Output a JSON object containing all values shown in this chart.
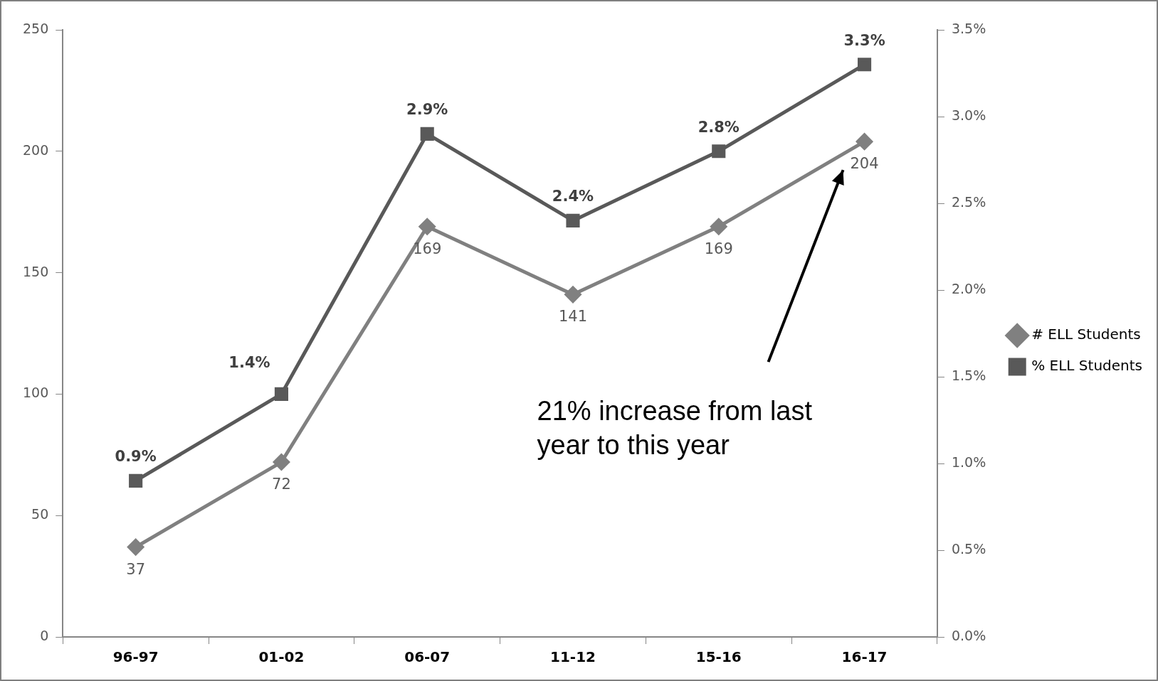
{
  "chart_data": {
    "type": "line",
    "categories": [
      "96-97",
      "01-02",
      "06-07",
      "11-12",
      "15-16",
      "16-17"
    ],
    "series": [
      {
        "name": "# ELL Students",
        "color": "#808080",
        "marker": "diamond",
        "values": [
          37,
          72,
          169,
          141,
          169,
          204
        ]
      },
      {
        "name": "% ELL Students",
        "color": "#595959",
        "marker": "square",
        "axis": "y2",
        "values": [
          0.9,
          1.4,
          2.9,
          2.4,
          2.8,
          3.3
        ],
        "value_labels": [
          "0.9%",
          "1.4%",
          "2.9%",
          "2.4%",
          "2.8%",
          "3.3%"
        ]
      }
    ],
    "ylim": [
      0,
      250
    ],
    "yticks": [
      0,
      50,
      100,
      150,
      200,
      250
    ],
    "y2lim": [
      0,
      3.5
    ],
    "y2ticks": [
      {
        "value": 0,
        "label": "0.0%"
      },
      {
        "value": 0.5,
        "label": "0.5%"
      },
      {
        "value": 1,
        "label": "1.0%"
      },
      {
        "value": 1.5,
        "label": "1.5%"
      },
      {
        "value": 2,
        "label": "2.0%"
      },
      {
        "value": 2.5,
        "label": "2.5%"
      },
      {
        "value": 3,
        "label": "3.0%"
      },
      {
        "value": 3.5,
        "label": "3.5%"
      }
    ],
    "data_labels": true,
    "grid": false,
    "legend": "right",
    "line_style": "solid",
    "annotations": [
      "21% increase from last year to this year"
    ]
  }
}
